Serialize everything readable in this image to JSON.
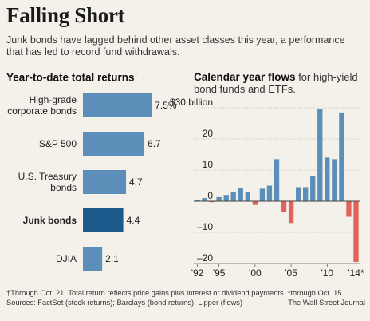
{
  "header": {
    "title": "Falling Short",
    "subtitle": "Junk bonds have lagged behind other asset classes this year, a performance that has led to record fund withdrawals."
  },
  "footer": {
    "note": "†Through Oct. 21. Total return reflects price gains plus interest or dividend payments. *through Oct. 15",
    "sources": "Sources: FactSet (stock returns); Barclays (bond returns); Lipper (flows)",
    "credit": "The Wall Street Journal"
  },
  "colors": {
    "bar": "#5b8fb9",
    "highlight": "#1c5a8c",
    "negative": "#e0645b",
    "background": "#f4f1ea"
  },
  "chart_data": [
    {
      "type": "bar",
      "orientation": "horizontal",
      "title": "Year-to-date total returns",
      "title_mark": "†",
      "categories": [
        "High-grade\ncorporate bonds",
        "S&P 500",
        "U.S. Treasury\nbonds",
        "Junk bonds",
        "DJIA"
      ],
      "values": [
        7.5,
        6.7,
        4.7,
        4.4,
        2.1
      ],
      "value_labels": [
        "7.5%",
        "6.7",
        "4.7",
        "4.4",
        "2.1"
      ],
      "highlight_index": 3,
      "xlim": [
        0,
        8
      ]
    },
    {
      "type": "bar",
      "title": "Calendar year flows",
      "subtitle": "for high-yield bond funds and ETFs.",
      "x": [
        1992,
        1993,
        1994,
        1995,
        1996,
        1997,
        1998,
        1999,
        2000,
        2001,
        2002,
        2003,
        2004,
        2005,
        2006,
        2007,
        2008,
        2009,
        2010,
        2011,
        2012,
        2013,
        2014
      ],
      "values": [
        0.5,
        1.0,
        -0.3,
        1.3,
        2.0,
        2.8,
        4.2,
        3.0,
        -1.2,
        4.0,
        5.0,
        13.5,
        -3.5,
        -7.0,
        4.5,
        4.5,
        8.0,
        29.5,
        14.0,
        13.5,
        28.5,
        -5.0,
        -19.5
      ],
      "ylim": [
        -20,
        30
      ],
      "yticks": [
        -20,
        -10,
        0,
        10,
        20,
        30
      ],
      "ytick_labels": [
        "–20",
        "–10",
        "0",
        "10",
        "20",
        "$30 billion"
      ],
      "xtick_labels": [
        "'92",
        "'95",
        "'00",
        "'05",
        "'10",
        "'14"
      ],
      "xtick_years": [
        1992,
        1995,
        2000,
        2005,
        2010,
        2014
      ],
      "last_label_mark": "*",
      "grid": true
    }
  ]
}
